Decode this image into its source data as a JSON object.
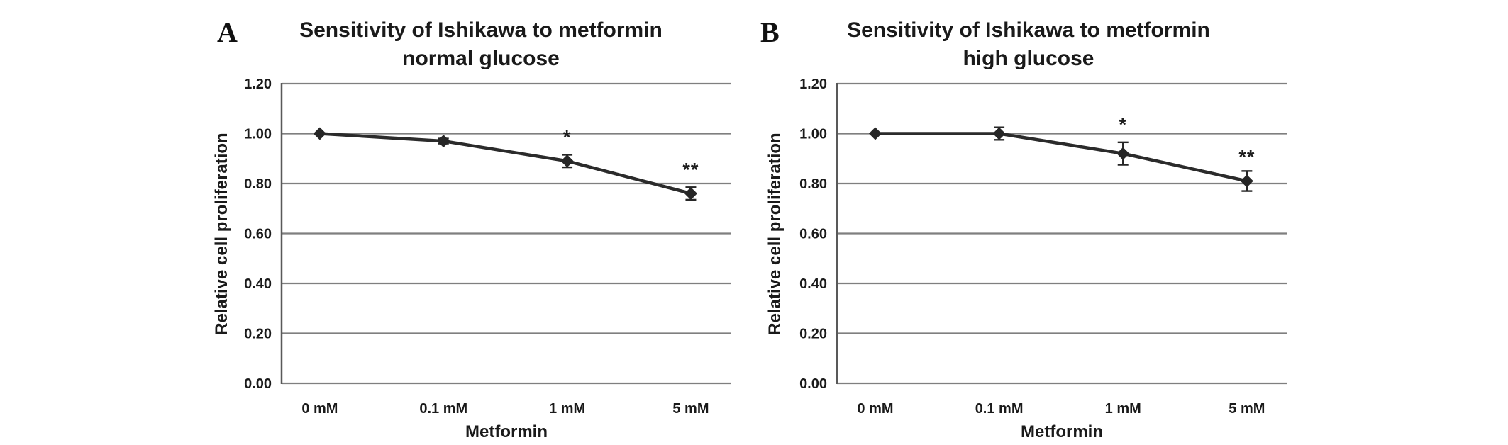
{
  "figure": {
    "background": "#ffffff",
    "style": {
      "text_color": "#1a1a1a",
      "gridline_color": "#7f7f7f",
      "axis_line_color": "#595959",
      "series_line_color": "#2b2b2b",
      "marker_color": "#262626",
      "error_bar_color": "#262626"
    }
  },
  "chart_data": [
    {
      "type": "line",
      "panel_label": "A",
      "title_line1": "Sensitivity of Ishikawa to metformin",
      "title_line2": "normal glucose",
      "xlabel": "Metformin",
      "ylabel": "Relative cell proliferation",
      "categories": [
        "0 mM",
        "0.1 mM",
        "1 mM",
        "5 mM"
      ],
      "series": [
        {
          "name": "Ishikawa normal glucose",
          "values": [
            1.0,
            0.97,
            0.89,
            0.76
          ],
          "error_bars": [
            0,
            0.01,
            0.025,
            0.025
          ]
        }
      ],
      "annotations": [
        {
          "category_index": 2,
          "text": "*",
          "level": 1.0
        },
        {
          "category_index": 3,
          "text": "**",
          "level": 0.87
        }
      ],
      "ylim": [
        0.0,
        1.2
      ],
      "ytick_labels": [
        "0.00",
        "0.20",
        "0.40",
        "0.60",
        "0.80",
        "1.00",
        "1.20"
      ],
      "ytick_values": [
        0.0,
        0.2,
        0.4,
        0.6,
        0.8,
        1.0,
        1.2
      ],
      "grid": true,
      "legend": "none",
      "marker": "diamond"
    },
    {
      "type": "line",
      "panel_label": "B",
      "title_line1": "Sensitivity of Ishikawa to metformin",
      "title_line2": "high glucose",
      "xlabel": "Metformin",
      "ylabel": "Relative cell proliferation",
      "categories": [
        "0 mM",
        "0.1 mM",
        "1 mM",
        "5 mM"
      ],
      "series": [
        {
          "name": "Ishikawa high glucose",
          "values": [
            1.0,
            1.0,
            0.92,
            0.81
          ],
          "error_bars": [
            0,
            0.025,
            0.045,
            0.04
          ]
        }
      ],
      "annotations": [
        {
          "category_index": 2,
          "text": "*",
          "level": 1.05
        },
        {
          "category_index": 3,
          "text": "**",
          "level": 0.92
        }
      ],
      "ylim": [
        0.0,
        1.2
      ],
      "ytick_labels": [
        "0.00",
        "0.20",
        "0.40",
        "0.60",
        "0.80",
        "1.00",
        "1.20"
      ],
      "ytick_values": [
        0.0,
        0.2,
        0.4,
        0.6,
        0.8,
        1.0,
        1.2
      ],
      "grid": true,
      "legend": "none",
      "marker": "diamond"
    }
  ]
}
